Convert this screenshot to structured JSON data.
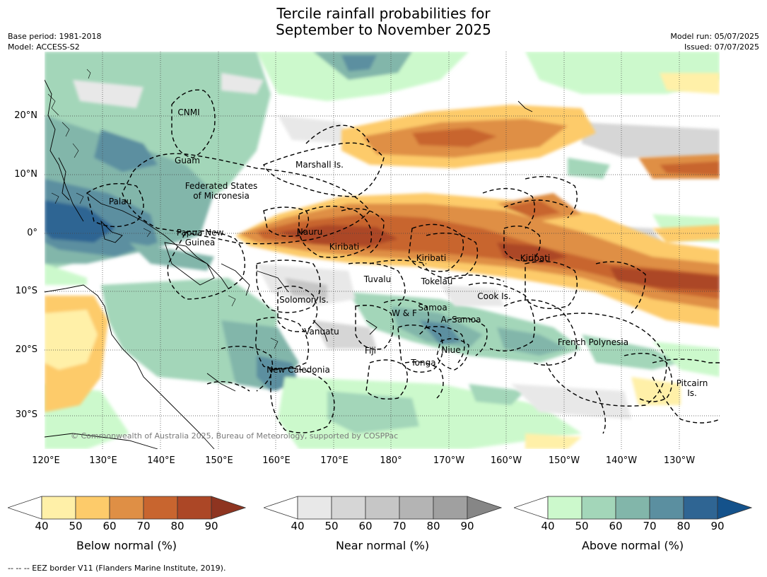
{
  "title_line1": "Tercile rainfall probabilities for",
  "title_line2": "September to November 2025",
  "meta": {
    "base_period": "Base period: 1981-2018",
    "model": "Model: ACCESS-S2",
    "model_run": "Model run: 05/07/2025",
    "issued": "Issued: 07/07/2025"
  },
  "lat_labels": [
    "20°N",
    "10°N",
    "0°",
    "10°S",
    "20°S",
    "30°S"
  ],
  "lon_labels": [
    "120°E",
    "130°E",
    "140°E",
    "150°E",
    "160°E",
    "170°E",
    "180°",
    "170°W",
    "160°W",
    "150°W",
    "140°W",
    "130°W"
  ],
  "regions": {
    "cnmi": "CNMI",
    "guam": "Guam",
    "marshall": "Marshall Is.",
    "fsm": "Federated States\nof Micronesia",
    "palau": "Palau",
    "nauru": "Nauru",
    "png": "Papua New\nGuinea",
    "kiribati_w": "Kiribati",
    "kiribati_c": "Kiribati",
    "kiribati_e": "Kiribati",
    "tuvalu": "Tuvalu",
    "tokelau": "Tokelau",
    "solomon": "Solomon Is.",
    "cook": "Cook Is.",
    "samoa": "Samoa",
    "wf": "W & F",
    "asamoa": "A. Samoa",
    "vanuatu": "Vanuatu",
    "fiji": "Fiji",
    "niue": "Niue",
    "french_polynesia": "French Polynesia",
    "tonga": "Tonga",
    "new_caledonia": "New Caledonia",
    "pitcairn": "Pitcairn\nIs."
  },
  "copyright": "© Commonwealth of Australia 2025, Bureau of Meteorology, supported by COSPPac",
  "colorbars": [
    {
      "label": "Below normal (%)",
      "colors": [
        "#fff0a8",
        "#fdcb6a",
        "#df8f45",
        "#c8652f",
        "#ac4726",
        "#8e3420"
      ]
    },
    {
      "label": "Near normal (%)",
      "colors": [
        "#e8e8e8",
        "#d6d6d6",
        "#c6c6c6",
        "#b4b4b4",
        "#a0a0a0",
        "#868686"
      ]
    },
    {
      "label": "Above normal (%)",
      "colors": [
        "#ccf9cc",
        "#a3d6b9",
        "#82b6aa",
        "#5b8fa0",
        "#2f6593",
        "#14528b"
      ]
    }
  ],
  "colorbar_ticks": [
    "40",
    "50",
    "60",
    "70",
    "80",
    "90"
  ],
  "footnote": "--  --  -- EEZ border V11 (Flanders Marine Institute, 2019).",
  "colors": {
    "below": "#c8652f",
    "below_light": "#fdcb6a",
    "below_pale": "#fff0a8",
    "near": "#d6d6d6",
    "above": "#a3d6b9",
    "above_dark": "#5b8fa0",
    "above_darker": "#2f6593"
  }
}
